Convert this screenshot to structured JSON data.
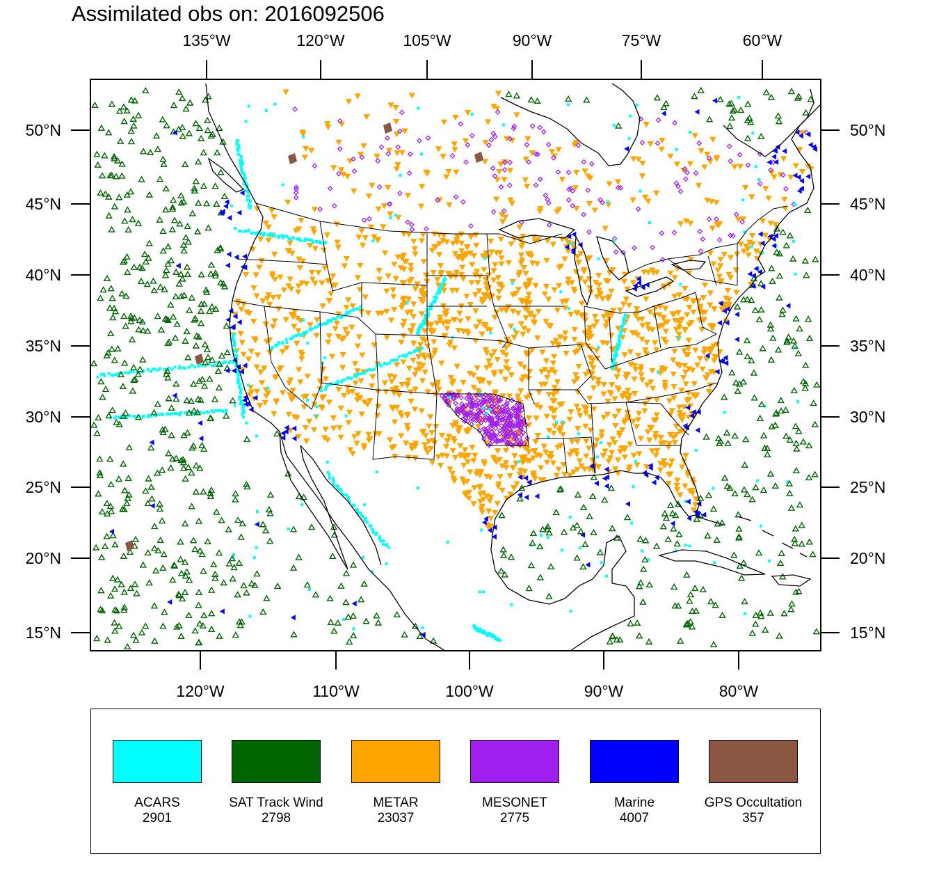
{
  "title": "Assimilated obs on: 2016092506",
  "top_lon_labels": [
    "135°W",
    "120°W",
    "105°W",
    "90°W",
    "75°W",
    "60°W"
  ],
  "bottom_lon_labels": [
    "120°W",
    "110°W",
    "100°W",
    "90°W",
    "80°W"
  ],
  "lat_labels": [
    "50°N",
    "45°N",
    "40°N",
    "35°N",
    "30°N",
    "25°N",
    "20°N",
    "15°N"
  ],
  "legend": [
    {
      "label": "ACARS",
      "count": "2901",
      "color": "#00ffff"
    },
    {
      "label": "SAT Track Wind",
      "count": "2798",
      "color": "#006400"
    },
    {
      "label": "METAR",
      "count": "23037",
      "color": "#ffa500"
    },
    {
      "label": "MESONET",
      "count": "2775",
      "color": "#a020f0"
    },
    {
      "label": "Marine",
      "count": "4007",
      "color": "#0000ff"
    },
    {
      "label": "GPS Occultation",
      "count": "357",
      "color": "#8b5742"
    }
  ]
}
